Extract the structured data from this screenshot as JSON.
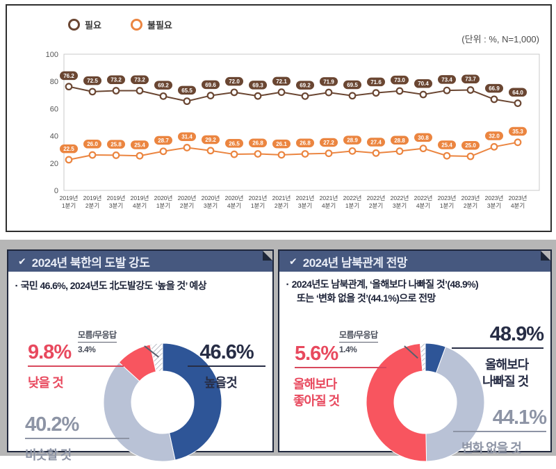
{
  "top_chart": {
    "legend": [
      {
        "label": "필요",
        "color": "#6a4632"
      },
      {
        "label": "불필요",
        "color": "#eb8540"
      }
    ],
    "unit_note": "(단위 : %, N=1,000)"
  },
  "chart_data": [
    {
      "type": "line",
      "title": "",
      "unit_note": "(단위 : %, N=1,000)",
      "categories": [
        "2019년 1분기",
        "2019년 2분기",
        "2019년 3분기",
        "2019년 4분기",
        "2020년 1분기",
        "2020년 2분기",
        "2020년 3분기",
        "2020년 4분기",
        "2021년 1분기",
        "2021년 2분기",
        "2021년 3분기",
        "2021년 4분기",
        "2022년 1분기",
        "2022년 2분기",
        "2022년 3분기",
        "2022년 4분기",
        "2023년 1분기",
        "2023년 2분기",
        "2023년 3분기",
        "2023년 4분기"
      ],
      "y_ticks": [
        100,
        80,
        60,
        40,
        20,
        0
      ],
      "ylim": [
        0,
        100
      ],
      "grid": false,
      "legend_position": "top-left",
      "series": [
        {
          "name": "필요",
          "color": "#6a4632",
          "values": [
            76.2,
            72.5,
            73.2,
            73.2,
            69.2,
            65.5,
            69.6,
            72.0,
            69.3,
            72.1,
            69.2,
            71.9,
            69.5,
            71.6,
            73.0,
            70.4,
            73.4,
            73.7,
            66.9,
            64.0
          ]
        },
        {
          "name": "불필요",
          "color": "#eb8540",
          "values": [
            22.5,
            26.0,
            25.8,
            25.4,
            28.7,
            31.4,
            29.2,
            26.5,
            26.8,
            26.1,
            26.8,
            27.2,
            28.9,
            27.4,
            28.8,
            30.8,
            25.4,
            25.0,
            32.0,
            35.3
          ]
        }
      ]
    },
    {
      "type": "pie",
      "subtype": "donut",
      "title": "2024년 북한의 도발 강도",
      "slices": [
        {
          "label": "높을 것",
          "display": "높을것",
          "value": 46.6,
          "pct": "46.6%",
          "color": "navy"
        },
        {
          "label": "비슷할 것",
          "display": "비슷할 것",
          "value": 40.2,
          "pct": "40.2%",
          "color": "gray"
        },
        {
          "label": "낮을 것",
          "display": "낮을 것",
          "value": 9.8,
          "pct": "9.8%",
          "color": "red"
        },
        {
          "label": "모름/무응답",
          "display": "모름/무응답",
          "value": 3.4,
          "pct": "3.4%",
          "color": "hatch"
        }
      ]
    },
    {
      "type": "pie",
      "subtype": "donut",
      "title": "2024년 남북관계 전망",
      "slices": [
        {
          "label": "올해보다 좋아질 것",
          "display_lines": [
            "올해보다",
            "좋아질 것"
          ],
          "value": 5.6,
          "pct": "5.6%",
          "color": "navy"
        },
        {
          "label": "변화 없을 것",
          "display": "변화 없을 것",
          "value": 44.1,
          "pct": "44.1%",
          "color": "gray"
        },
        {
          "label": "올해보다 나빠질 것",
          "display_lines": [
            "올해보다",
            "나빠질 것"
          ],
          "value": 48.9,
          "pct": "48.9%",
          "color": "red"
        },
        {
          "label": "모름/무응답",
          "display": "모름/무응답",
          "value": 1.4,
          "pct": "1.4%",
          "color": "hatch"
        }
      ]
    }
  ],
  "donut_colors": {
    "navy": "#2e5597",
    "gray": "#b9c2d6",
    "red": "#f8555f",
    "hatch_line": "#9aa0ad"
  },
  "panels": [
    {
      "check": "✔",
      "header": "2024년 북한의 도발 강도",
      "bullet": "국민 46.6%, 2024년도 北도발강도 ‘높을 것’ 예상"
    },
    {
      "check": "✔",
      "header": "2024년 남북관계 전망",
      "bullet_line1": "2024년도 남북관계, ‘올해보다 나빠질 것’(48.9%)",
      "bullet_line2": "또는 ‘변화 없을 것’(44.1%)으로 전망"
    }
  ]
}
